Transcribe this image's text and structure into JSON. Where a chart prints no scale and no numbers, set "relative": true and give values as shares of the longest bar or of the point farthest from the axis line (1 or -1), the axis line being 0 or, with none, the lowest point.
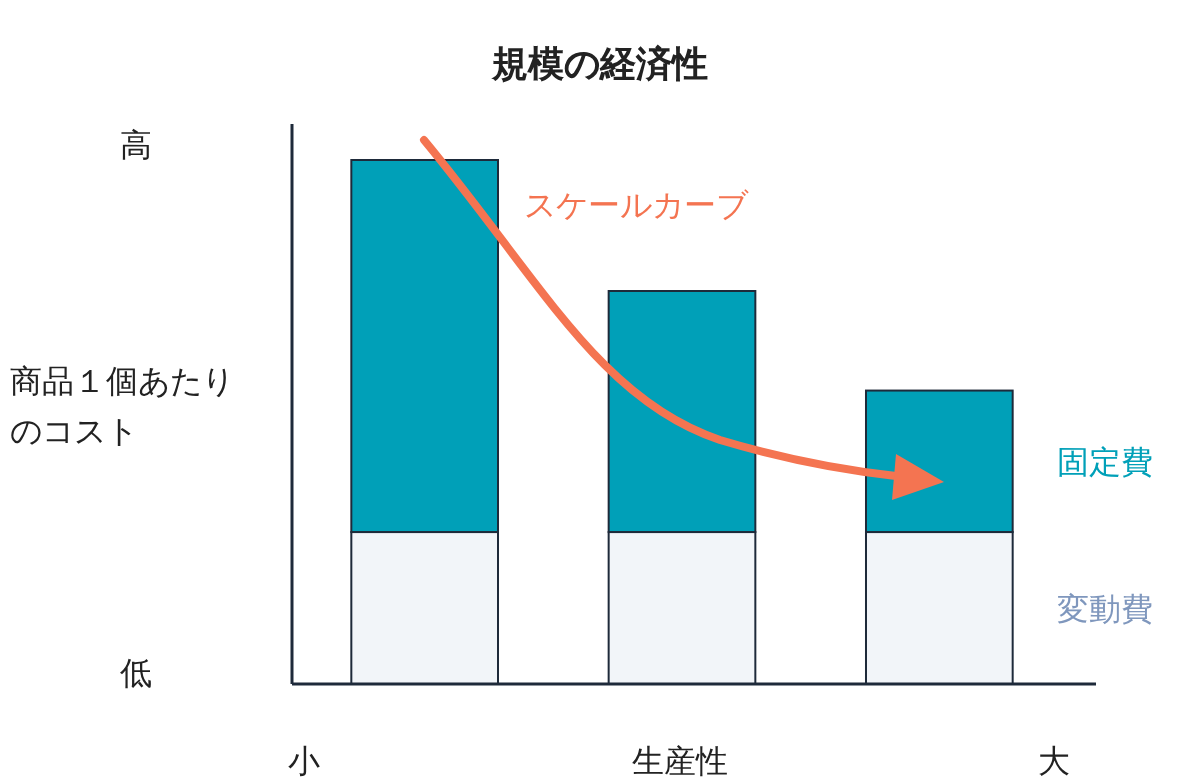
{
  "chart_data": {
    "type": "bar",
    "title": "規模の経済性",
    "xlabel": "生産性",
    "ylabel": "商品１個あたりのコスト",
    "categories": [
      null,
      null,
      null
    ],
    "stacked": true,
    "relative": true,
    "series": [
      {
        "name": "変動費",
        "color": "#f2f5f9",
        "values": [
          0.29,
          0.29,
          0.29
        ]
      },
      {
        "name": "固定費",
        "color": "#00a0b8",
        "values": [
          0.71,
          0.46,
          0.27
        ]
      }
    ],
    "annotations": [
      "高",
      "低",
      "小",
      "大",
      "スケールカーブ"
    ]
  }
}
